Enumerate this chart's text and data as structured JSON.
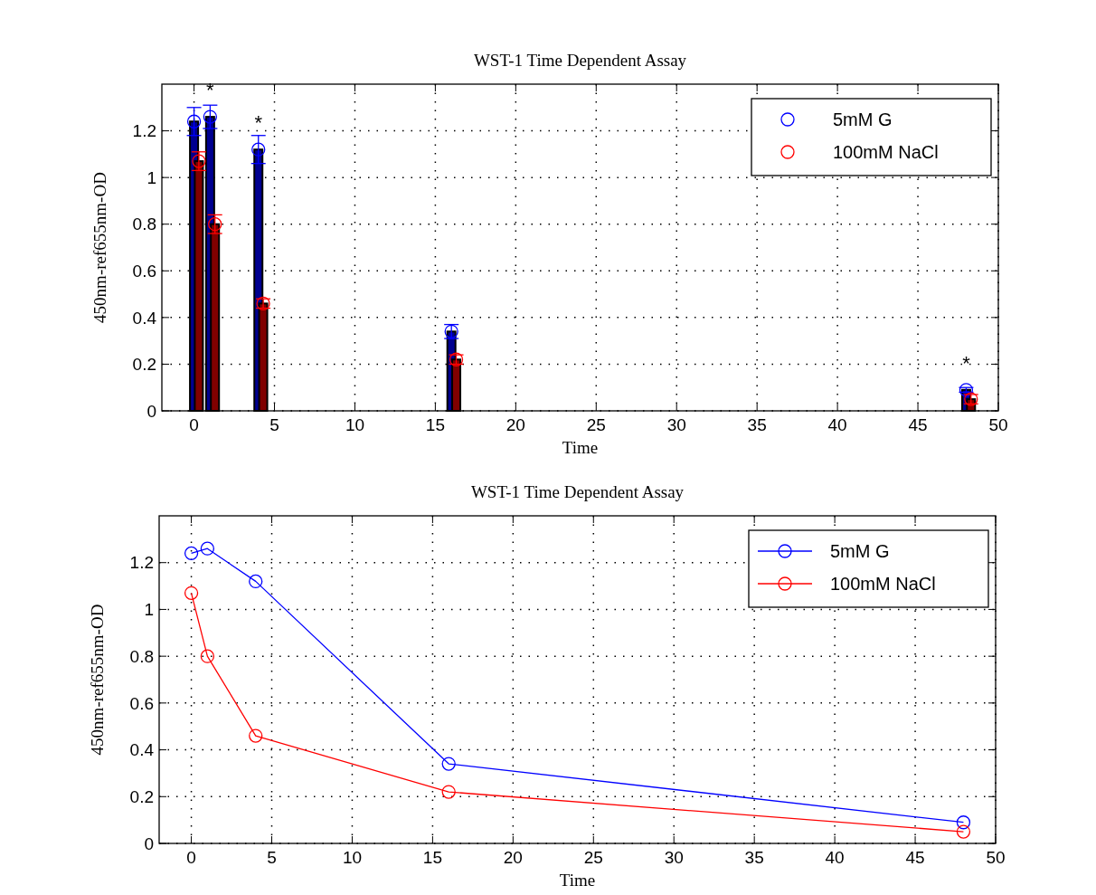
{
  "chart_data": [
    {
      "type": "bar",
      "title": "WST-1 Time Dependent Assay",
      "xlabel": "Time",
      "ylabel": "450nm-ref655nm-OD",
      "xlim": [
        -2,
        50
      ],
      "xticks": [
        0,
        5,
        10,
        15,
        20,
        25,
        30,
        35,
        40,
        45,
        50
      ],
      "ylim": [
        0,
        1.4
      ],
      "yticks": [
        0,
        0.2,
        0.4,
        0.6,
        0.8,
        1,
        1.2
      ],
      "grid": true,
      "legend": "top right",
      "marker": "circle",
      "series": [
        {
          "color": "#000090",
          "x": [
            0,
            1,
            4,
            16,
            48
          ],
          "values": [
            1.24,
            1.26,
            1.12,
            0.34,
            0.09
          ]
        },
        {
          "color": "#800000",
          "x": [
            0.3,
            1.3,
            4.3,
            16.3,
            48.3
          ],
          "values": [
            1.07,
            0.8,
            0.46,
            0.22,
            0.05
          ]
        },
        {
          "type": "scatter",
          "name": "5mM G",
          "color": "#0000ff",
          "x": [
            0,
            1,
            4,
            16,
            48
          ],
          "values": [
            1.24,
            1.26,
            1.12,
            0.34,
            0.09
          ],
          "errors": [
            0.06,
            0.05,
            0.06,
            0.03,
            0.01
          ]
        },
        {
          "type": "scatter",
          "name": "100mM NaCl",
          "color": "#ff0000",
          "x": [
            0.3,
            1.3,
            4.3,
            16.3,
            48.3
          ],
          "values": [
            1.07,
            0.8,
            0.46,
            0.22,
            0.05
          ],
          "errors": [
            0.04,
            0.04,
            0.02,
            0.02,
            0.02
          ]
        }
      ],
      "annotations": [
        {
          "text": "*",
          "x": 1,
          "y": 1.26
        },
        {
          "text": "*",
          "x": 4,
          "y": 1.12
        },
        {
          "text": "*",
          "x": 48,
          "y": 0.09
        }
      ]
    },
    {
      "type": "line",
      "title": "WST-1 Time Dependent Assay",
      "xlabel": "Time",
      "ylabel": "450nm-ref655nm-OD",
      "xlim": [
        -2,
        50
      ],
      "xticks": [
        0,
        5,
        10,
        15,
        20,
        25,
        30,
        35,
        40,
        45,
        50
      ],
      "ylim": [
        0,
        1.4
      ],
      "yticks": [
        0,
        0.2,
        0.4,
        0.6,
        0.8,
        1,
        1.2
      ],
      "grid": true,
      "legend": "top right",
      "marker": "circle",
      "line_style": "solid",
      "series": [
        {
          "name": "5mM G",
          "color": "#0000ff",
          "x": [
            0,
            1,
            4,
            16,
            48
          ],
          "values": [
            1.24,
            1.26,
            1.12,
            0.34,
            0.09
          ]
        },
        {
          "name": "100mM NaCl",
          "color": "#ff0000",
          "x": [
            0,
            1,
            4,
            16,
            48
          ],
          "values": [
            1.07,
            0.8,
            0.46,
            0.22,
            0.05
          ]
        }
      ]
    }
  ]
}
